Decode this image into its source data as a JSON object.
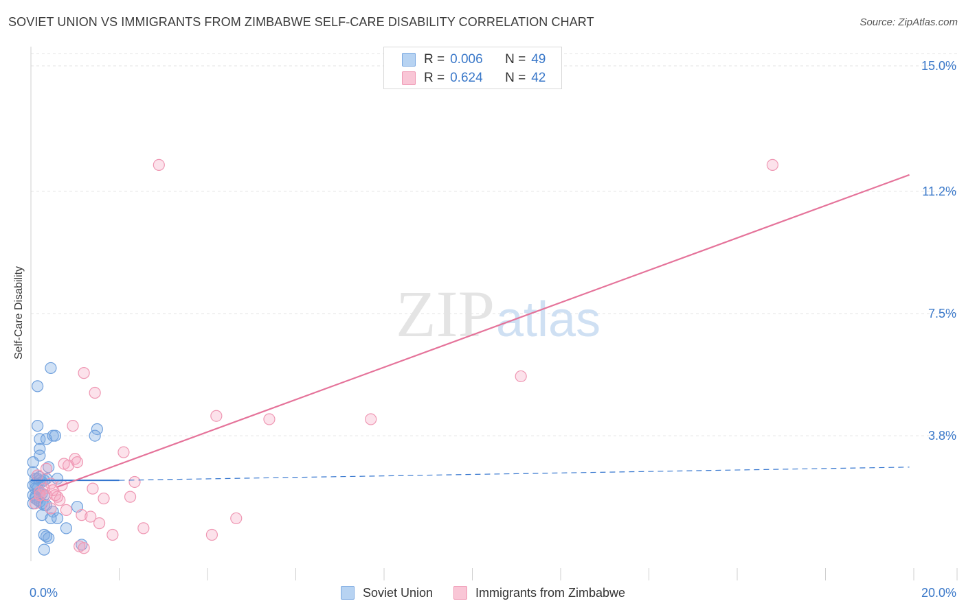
{
  "header": {
    "title": "SOVIET UNION VS IMMIGRANTS FROM ZIMBABWE SELF-CARE DISABILITY CORRELATION CHART",
    "source": "Source: ZipAtlas.com"
  },
  "watermark": {
    "part1": "ZIP",
    "part2": "atlas"
  },
  "legend_top": [
    {
      "r_label": "R =",
      "r_value": "0.006",
      "n_label": "N =",
      "n_value": "49",
      "fill": "#b7d3f2",
      "stroke": "#7aa8e0"
    },
    {
      "r_label": "R =",
      "r_value": "0.624",
      "n_label": "N =",
      "n_value": "42",
      "fill": "#f9c6d6",
      "stroke": "#ef97b3"
    }
  ],
  "colors": {
    "blue_fill": "rgba(120,168,226,0.35)",
    "blue_stroke": "#6fa0dd",
    "blue_line": "#3576cf",
    "pink_fill": "rgba(245,160,188,0.30)",
    "pink_stroke": "#ef97b3",
    "pink_line": "#e5739a",
    "tick_label": "#3a78c9",
    "grid": "#e3e3e3"
  },
  "chart_data": {
    "type": "scatter",
    "title": "SOVIET UNION VS IMMIGRANTS FROM ZIMBABWE SELF-CARE DISABILITY CORRELATION CHART",
    "xlabel": "",
    "ylabel": "Self-Care Disability",
    "xlim": [
      0,
      20
    ],
    "ylim": [
      0,
      15
    ],
    "x_tick_labels": [
      {
        "value": 0,
        "label": "0.0%"
      },
      {
        "value": 20,
        "label": "20.0%"
      }
    ],
    "y_tick_labels": [
      {
        "value": 3.8,
        "label": "3.8%"
      },
      {
        "value": 7.5,
        "label": "7.5%"
      },
      {
        "value": 11.2,
        "label": "11.2%"
      },
      {
        "value": 15.0,
        "label": "15.0%"
      }
    ],
    "x_minor_ticks": [
      2,
      4,
      6,
      8,
      10,
      12,
      14,
      16,
      18,
      20
    ],
    "series": [
      {
        "name": "Soviet Union",
        "points": [
          [
            0.15,
            5.3
          ],
          [
            0.45,
            5.85
          ],
          [
            0.15,
            4.1
          ],
          [
            1.5,
            4.0
          ],
          [
            0.2,
            3.7
          ],
          [
            0.35,
            3.7
          ],
          [
            0.5,
            3.8
          ],
          [
            0.55,
            3.8
          ],
          [
            1.45,
            3.8
          ],
          [
            0.2,
            3.4
          ],
          [
            0.2,
            3.2
          ],
          [
            0.05,
            3.0
          ],
          [
            0.4,
            2.85
          ],
          [
            0.05,
            2.7
          ],
          [
            0.1,
            2.5
          ],
          [
            0.15,
            2.5
          ],
          [
            0.2,
            2.45
          ],
          [
            0.25,
            2.4
          ],
          [
            0.3,
            2.45
          ],
          [
            0.35,
            2.5
          ],
          [
            0.6,
            2.5
          ],
          [
            0.05,
            2.3
          ],
          [
            0.1,
            2.2
          ],
          [
            0.15,
            2.2
          ],
          [
            0.2,
            2.1
          ],
          [
            0.25,
            2.05
          ],
          [
            0.3,
            2.0
          ],
          [
            0.05,
            2.0
          ],
          [
            0.1,
            1.95
          ],
          [
            0.1,
            1.9
          ],
          [
            0.15,
            1.85
          ],
          [
            0.2,
            1.8
          ],
          [
            0.25,
            1.75
          ],
          [
            0.05,
            1.75
          ],
          [
            0.3,
            1.7
          ],
          [
            0.35,
            1.7
          ],
          [
            1.05,
            1.65
          ],
          [
            0.5,
            1.5
          ],
          [
            0.25,
            1.4
          ],
          [
            0.6,
            1.3
          ],
          [
            0.45,
            1.3
          ],
          [
            0.8,
            1.0
          ],
          [
            0.3,
            0.8
          ],
          [
            0.35,
            0.75
          ],
          [
            0.4,
            0.7
          ],
          [
            1.15,
            0.5
          ],
          [
            0.3,
            0.35
          ],
          [
            0.1,
            2.35
          ],
          [
            0.2,
            2.55
          ]
        ]
      },
      {
        "name": "Immigrants from Zimbabwe",
        "points": [
          [
            2.9,
            12.0
          ],
          [
            16.8,
            12.0
          ],
          [
            1.2,
            5.7
          ],
          [
            11.1,
            5.6
          ],
          [
            1.45,
            5.1
          ],
          [
            4.2,
            4.4
          ],
          [
            5.4,
            4.3
          ],
          [
            7.7,
            4.3
          ],
          [
            0.95,
            4.1
          ],
          [
            2.1,
            3.3
          ],
          [
            1.0,
            3.1
          ],
          [
            1.05,
            3.0
          ],
          [
            0.75,
            2.95
          ],
          [
            0.85,
            2.9
          ],
          [
            0.35,
            2.8
          ],
          [
            0.15,
            2.6
          ],
          [
            2.35,
            2.4
          ],
          [
            0.45,
            2.35
          ],
          [
            0.7,
            2.3
          ],
          [
            1.4,
            2.2
          ],
          [
            0.3,
            2.2
          ],
          [
            0.2,
            2.1
          ],
          [
            0.2,
            2.0
          ],
          [
            0.35,
            2.0
          ],
          [
            0.55,
            2.0
          ],
          [
            0.6,
            1.95
          ],
          [
            2.25,
            1.95
          ],
          [
            1.65,
            1.9
          ],
          [
            0.65,
            1.85
          ],
          [
            0.1,
            1.75
          ],
          [
            0.45,
            1.6
          ],
          [
            0.8,
            1.55
          ],
          [
            1.15,
            1.4
          ],
          [
            1.35,
            1.35
          ],
          [
            4.65,
            1.3
          ],
          [
            1.55,
            1.15
          ],
          [
            2.55,
            1.0
          ],
          [
            1.85,
            0.8
          ],
          [
            4.1,
            0.8
          ],
          [
            1.1,
            0.45
          ],
          [
            1.2,
            0.4
          ],
          [
            0.5,
            2.15
          ]
        ]
      }
    ],
    "trend_lines": [
      {
        "series": "Soviet Union",
        "solid": [
          [
            0.0,
            2.45
          ],
          [
            2.0,
            2.45
          ]
        ],
        "dashed": [
          [
            2.0,
            2.45
          ],
          [
            19.9,
            2.85
          ]
        ]
      },
      {
        "series": "Immigrants from Zimbabwe",
        "solid": [
          [
            0.6,
            2.25
          ],
          [
            19.9,
            11.7
          ]
        ]
      }
    ],
    "legend": [
      "Soviet Union",
      "Immigrants from Zimbabwe"
    ],
    "legend_placement": "top-center and bottom",
    "grid": true
  }
}
